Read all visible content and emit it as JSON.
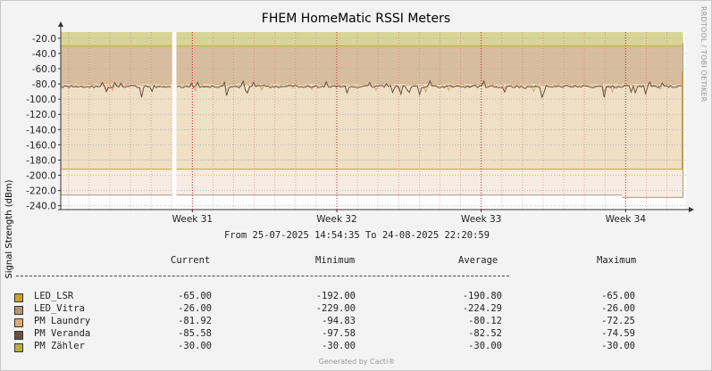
{
  "chart_data": {
    "type": "area",
    "title": "FHEM HomeMatic RSSI Meters",
    "ylabel": "Signal Strength (dBm)",
    "xlabel": "",
    "ylim": [
      -245,
      -12
    ],
    "yticks": [
      "-20.0",
      "-40.0",
      "-60.0",
      "-80.0",
      "-100.0",
      "-120.0",
      "-140.0",
      "-160.0",
      "-180.0",
      "-200.0",
      "-220.0",
      "-240.0"
    ],
    "ytick_values": [
      -20,
      -40,
      -60,
      -80,
      -100,
      -120,
      -140,
      -160,
      -180,
      -200,
      -220,
      -240
    ],
    "xticks": [
      "Week 31",
      "Week 32",
      "Week 33",
      "Week 34"
    ],
    "xtick_days": [
      6.38,
      13.38,
      20.38,
      27.38
    ],
    "x_range_days": [
      0,
      30.31
    ],
    "gap_days": [
      5.4,
      5.6
    ],
    "series": [
      {
        "name": "LED_LSR",
        "color": "#c8a02a",
        "level": -192.0,
        "end_value": -65.0
      },
      {
        "name": "LED_Vitra",
        "color": "#b0977a",
        "level": -229.0,
        "end_value": -26.0,
        "early_level": -226.0,
        "drop_day": 27.2
      },
      {
        "name": "PM Laundry",
        "color": "#dbaa78",
        "mean": -80.12,
        "min": -94.83,
        "max": -72.25
      },
      {
        "name": "PM Veranda",
        "color": "#6b5140",
        "mean": -82.52,
        "min": -97.58,
        "max": -74.59
      },
      {
        "name": "PM Zähler",
        "color": "#b8b03c",
        "level": -30.0
      }
    ]
  },
  "date_range": "From 25-07-2025 14:54:35 To 24-08-2025 22:20:59",
  "legend": {
    "headers": {
      "current": "Current",
      "minimum": "Minimum",
      "average": "Average",
      "maximum": "Maximum"
    },
    "rows": [
      {
        "name": "LED_LSR",
        "color": "#c8a02a",
        "current": "-65.00",
        "minimum": "-192.00",
        "average": "-190.80",
        "maximum": "-65.00"
      },
      {
        "name": "LED_Vitra",
        "color": "#b0977a",
        "current": "-26.00",
        "minimum": "-229.00",
        "average": "-224.29",
        "maximum": "-26.00"
      },
      {
        "name": "PM Laundry",
        "color": "#dbaa78",
        "current": "-81.92",
        "minimum": "-94.83",
        "average": "-80.12",
        "maximum": "-72.25"
      },
      {
        "name": "PM Veranda",
        "color": "#6b5140",
        "current": "-85.58",
        "minimum": "-97.58",
        "average": "-82.52",
        "maximum": "-74.59"
      },
      {
        "name": "PM Zähler",
        "color": "#b8b03c",
        "current": "-30.00",
        "minimum": "-30.00",
        "average": "-30.00",
        "maximum": "-30.00"
      }
    ]
  },
  "watermark": "RRDTOOL / TOBI OETIKER",
  "footer": "Generated by Cacti®"
}
